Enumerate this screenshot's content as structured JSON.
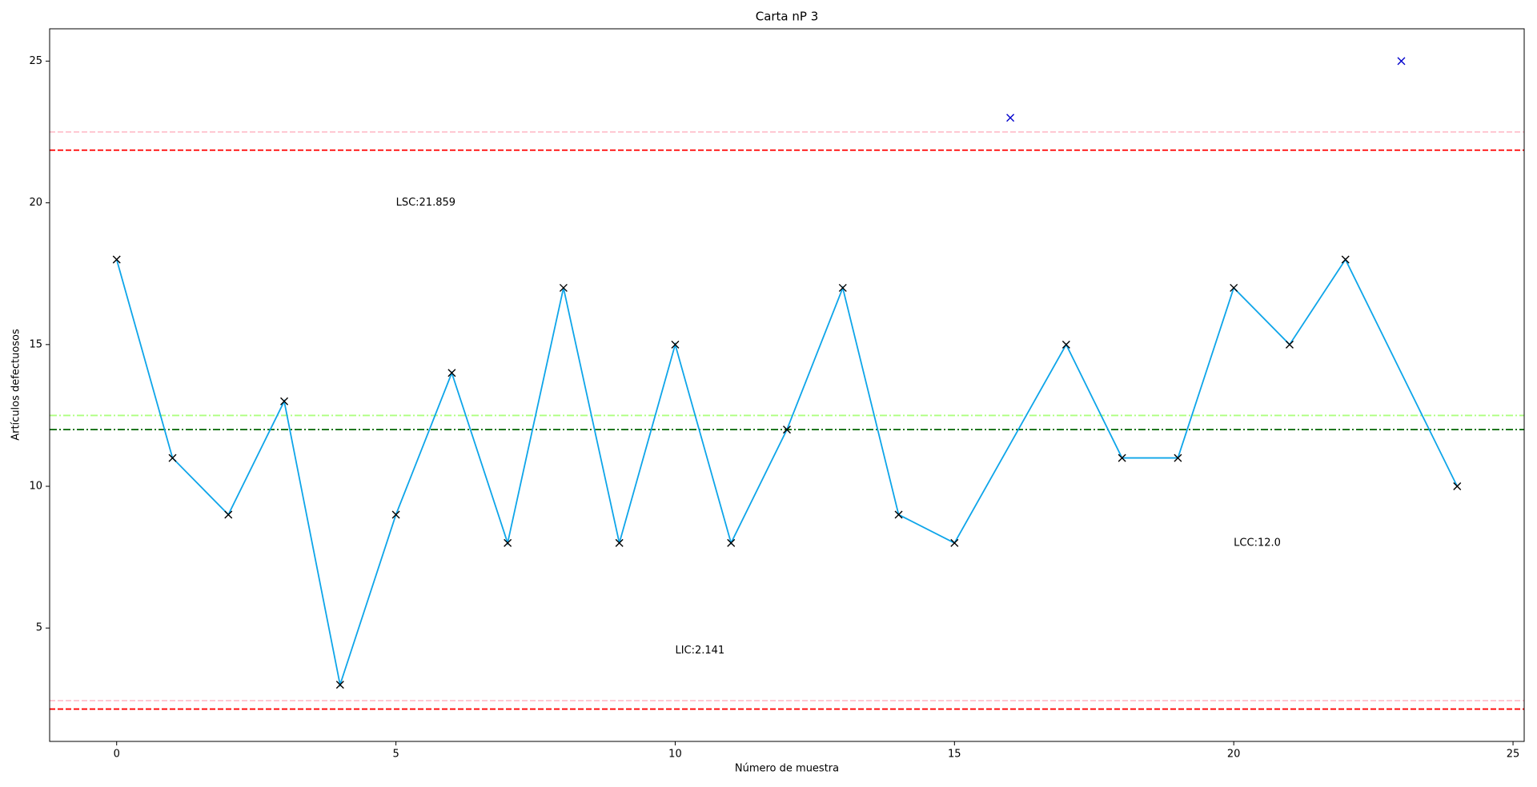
{
  "chart_data": {
    "type": "line",
    "title": "Carta nP 3",
    "xlabel": "Número de muestra",
    "ylabel": "Artículos defectuosos",
    "xlim": [
      -1.2,
      25.2
    ],
    "ylim": [
      1.0,
      26.14
    ],
    "xticks": [
      0,
      5,
      10,
      15,
      20,
      25
    ],
    "yticks": [
      5,
      10,
      15,
      20,
      25
    ],
    "series": [
      {
        "color": "#0ea5e9",
        "marker_color": "#000000",
        "line": true,
        "x": [
          0,
          1,
          2,
          3,
          4,
          5,
          6,
          7,
          8,
          9,
          10,
          11,
          12,
          13,
          14,
          15,
          17,
          18,
          19,
          20,
          21,
          22,
          24
        ],
        "values": [
          18,
          11,
          9,
          13,
          3,
          9,
          14,
          8,
          17,
          8,
          15,
          8,
          12,
          17,
          9,
          8,
          15,
          11,
          11,
          17,
          15,
          18,
          10
        ]
      },
      {
        "color": "#0000cc",
        "marker_color": "#0000cc",
        "line": false,
        "x": [
          16,
          23
        ],
        "values": [
          23,
          25
        ]
      }
    ],
    "hlines": [
      {
        "value": 22.5,
        "color": "#ffc0cb",
        "style": "dashed"
      },
      {
        "value": 21.859,
        "color": "#ff0000",
        "style": "dashed"
      },
      {
        "value": 12.5,
        "color": "#adff7f",
        "style": "dashdot"
      },
      {
        "value": 12.0,
        "color": "#006400",
        "style": "dashdot"
      },
      {
        "value": 2.44,
        "color": "#ffc0cb",
        "style": "dashed"
      },
      {
        "value": 2.141,
        "color": "#ff0000",
        "style": "dashed"
      }
    ],
    "annotations": [
      {
        "text": "LSC:21.859",
        "x": 5,
        "y": 20
      },
      {
        "text": "LIC:2.141",
        "x": 10,
        "y": 4.2
      },
      {
        "text": "LCC:12.0",
        "x": 20,
        "y": 8
      }
    ]
  }
}
